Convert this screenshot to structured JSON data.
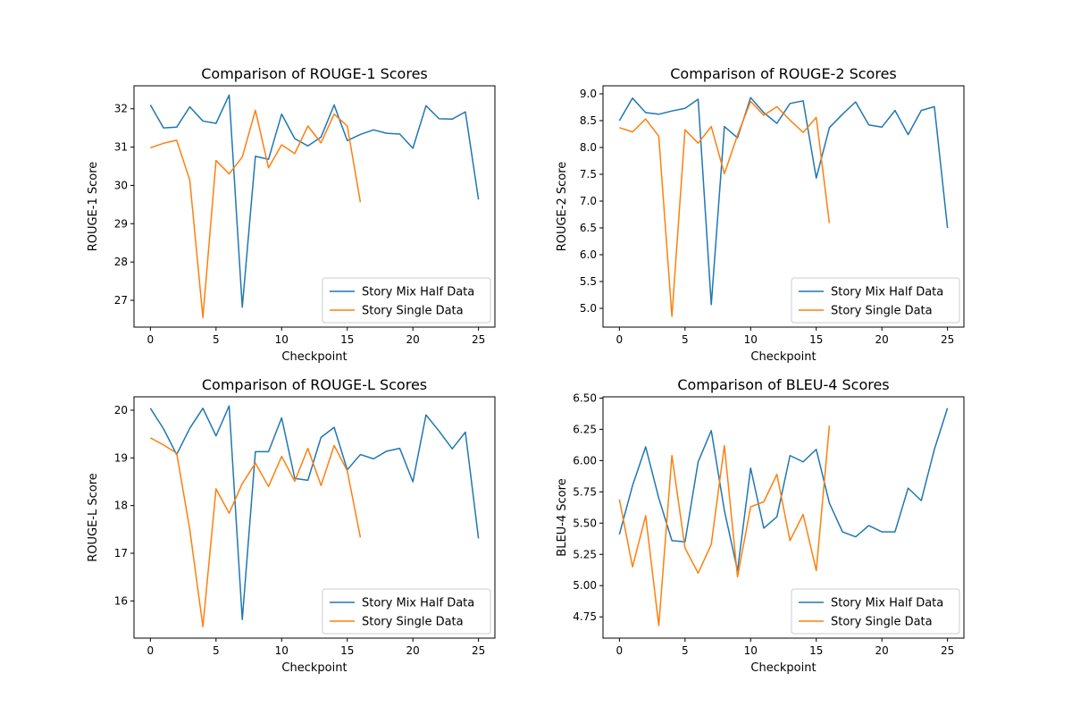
{
  "series_colors": [
    "#1f77b4",
    "#ff7f0e"
  ],
  "chart_data": [
    {
      "type": "line",
      "title": "Comparison of ROUGE-1 Scores",
      "xlabel": "Checkpoint",
      "ylabel": "ROUGE-1 Score",
      "xlim": [
        -1.25,
        26.25
      ],
      "ylim": [
        26.3,
        32.6
      ],
      "xticks": [
        0,
        5,
        10,
        15,
        20,
        25
      ],
      "yticks": [
        27,
        28,
        29,
        30,
        31,
        32
      ],
      "ytick_decimals": 0,
      "legend": "lower-right",
      "grid": false,
      "series": [
        {
          "name": "Story Mix Half Data",
          "x": [
            0,
            1,
            2,
            3,
            4,
            5,
            6,
            7,
            8,
            9,
            10,
            11,
            12,
            13,
            14,
            15,
            16,
            17,
            18,
            19,
            20,
            21,
            22,
            23,
            24,
            25
          ],
          "y": [
            32.1,
            31.5,
            31.52,
            32.05,
            31.68,
            31.62,
            32.36,
            26.82,
            30.76,
            30.68,
            31.86,
            31.22,
            31.03,
            31.26,
            32.1,
            31.17,
            31.33,
            31.45,
            31.36,
            31.34,
            30.97,
            32.08,
            31.74,
            31.73,
            31.92,
            29.63
          ]
        },
        {
          "name": "Story Single Data",
          "x": [
            0,
            1,
            2,
            3,
            4,
            5,
            6,
            7,
            8,
            9,
            10,
            11,
            12,
            13,
            14,
            15,
            16
          ],
          "y": [
            30.98,
            31.1,
            31.18,
            30.14,
            26.55,
            30.65,
            30.3,
            30.74,
            31.96,
            30.46,
            31.06,
            30.83,
            31.55,
            31.11,
            31.86,
            31.55,
            29.56
          ]
        }
      ]
    },
    {
      "type": "line",
      "title": "Comparison of ROUGE-2 Scores",
      "xlabel": "Checkpoint",
      "ylabel": "ROUGE-2 Score",
      "xlim": [
        -1.25,
        26.25
      ],
      "ylim": [
        4.65,
        9.15
      ],
      "xticks": [
        0,
        5,
        10,
        15,
        20,
        25
      ],
      "yticks": [
        5.0,
        5.5,
        6.0,
        6.5,
        7.0,
        7.5,
        8.0,
        8.5,
        9.0
      ],
      "ytick_decimals": 1,
      "legend": "lower-right",
      "grid": false,
      "series": [
        {
          "name": "Story Mix Half Data",
          "x": [
            0,
            1,
            2,
            3,
            4,
            5,
            6,
            7,
            8,
            9,
            10,
            11,
            12,
            13,
            14,
            15,
            16,
            17,
            18,
            19,
            20,
            21,
            22,
            23,
            24,
            25
          ],
          "y": [
            8.5,
            8.92,
            8.65,
            8.62,
            8.68,
            8.73,
            8.9,
            5.07,
            8.39,
            8.18,
            8.93,
            8.65,
            8.45,
            8.82,
            8.87,
            7.43,
            8.37,
            8.62,
            8.85,
            8.42,
            8.38,
            8.69,
            8.24,
            8.69,
            8.76,
            6.5
          ]
        },
        {
          "name": "Story Single Data",
          "x": [
            0,
            1,
            2,
            3,
            4,
            5,
            6,
            7,
            8,
            9,
            10,
            11,
            12,
            13,
            14,
            15,
            16
          ],
          "y": [
            8.37,
            8.29,
            8.53,
            8.21,
            4.85,
            8.33,
            8.08,
            8.39,
            7.51,
            8.23,
            8.86,
            8.6,
            8.76,
            8.51,
            8.28,
            8.56,
            6.59
          ]
        }
      ]
    },
    {
      "type": "line",
      "title": "Comparison of ROUGE-L Scores",
      "xlabel": "Checkpoint",
      "ylabel": "ROUGE-L Score",
      "xlim": [
        -1.25,
        26.25
      ],
      "ylim": [
        15.22,
        20.28
      ],
      "xticks": [
        0,
        5,
        10,
        15,
        20,
        25
      ],
      "yticks": [
        16,
        17,
        18,
        19,
        20
      ],
      "ytick_decimals": 0,
      "legend": "lower-right",
      "grid": false,
      "series": [
        {
          "name": "Story Mix Half Data",
          "x": [
            0,
            1,
            2,
            3,
            4,
            5,
            6,
            7,
            8,
            9,
            10,
            11,
            12,
            13,
            14,
            15,
            16,
            17,
            18,
            19,
            20,
            21,
            22,
            23,
            24,
            25
          ],
          "y": [
            20.04,
            19.61,
            19.07,
            19.62,
            20.04,
            19.46,
            20.09,
            15.61,
            19.13,
            19.13,
            19.84,
            18.57,
            18.53,
            19.43,
            19.64,
            18.75,
            19.07,
            18.98,
            19.14,
            19.2,
            18.5,
            19.9,
            19.56,
            19.19,
            19.54,
            17.31
          ]
        },
        {
          "name": "Story Single Data",
          "x": [
            0,
            1,
            2,
            3,
            4,
            5,
            6,
            7,
            8,
            9,
            10,
            11,
            12,
            13,
            14,
            15,
            16
          ],
          "y": [
            19.42,
            19.27,
            19.1,
            17.5,
            15.46,
            18.35,
            17.84,
            18.46,
            18.89,
            18.4,
            19.03,
            18.51,
            19.2,
            18.42,
            19.26,
            18.73,
            17.33
          ]
        }
      ]
    },
    {
      "type": "line",
      "title": "Comparison of BLEU-4 Scores",
      "xlabel": "Checkpoint",
      "ylabel": "BLEU-4 Score",
      "xlim": [
        -1.25,
        26.25
      ],
      "ylim": [
        4.58,
        6.51
      ],
      "xticks": [
        0,
        5,
        10,
        15,
        20,
        25
      ],
      "yticks": [
        4.75,
        5.0,
        5.25,
        5.5,
        5.75,
        6.0,
        6.25,
        6.5
      ],
      "ytick_decimals": 2,
      "legend": "lower-right",
      "grid": false,
      "series": [
        {
          "name": "Story Mix Half Data",
          "x": [
            0,
            1,
            2,
            3,
            4,
            5,
            6,
            7,
            8,
            9,
            10,
            11,
            12,
            13,
            14,
            15,
            16,
            17,
            18,
            19,
            20,
            21,
            22,
            23,
            24,
            25
          ],
          "y": [
            5.41,
            5.8,
            6.11,
            5.7,
            5.36,
            5.35,
            5.99,
            6.24,
            5.6,
            5.12,
            5.94,
            5.46,
            5.55,
            6.04,
            5.99,
            6.09,
            5.66,
            5.43,
            5.39,
            5.48,
            5.43,
            5.43,
            5.78,
            5.68,
            6.09,
            6.42
          ]
        },
        {
          "name": "Story Single Data",
          "x": [
            0,
            1,
            2,
            3,
            4,
            5,
            6,
            7,
            8,
            9,
            10,
            11,
            12,
            13,
            14,
            15,
            16
          ],
          "y": [
            5.69,
            5.15,
            5.56,
            4.68,
            6.04,
            5.3,
            5.1,
            5.33,
            6.12,
            5.07,
            5.63,
            5.67,
            5.89,
            5.36,
            5.57,
            5.12,
            6.28
          ]
        }
      ]
    }
  ]
}
